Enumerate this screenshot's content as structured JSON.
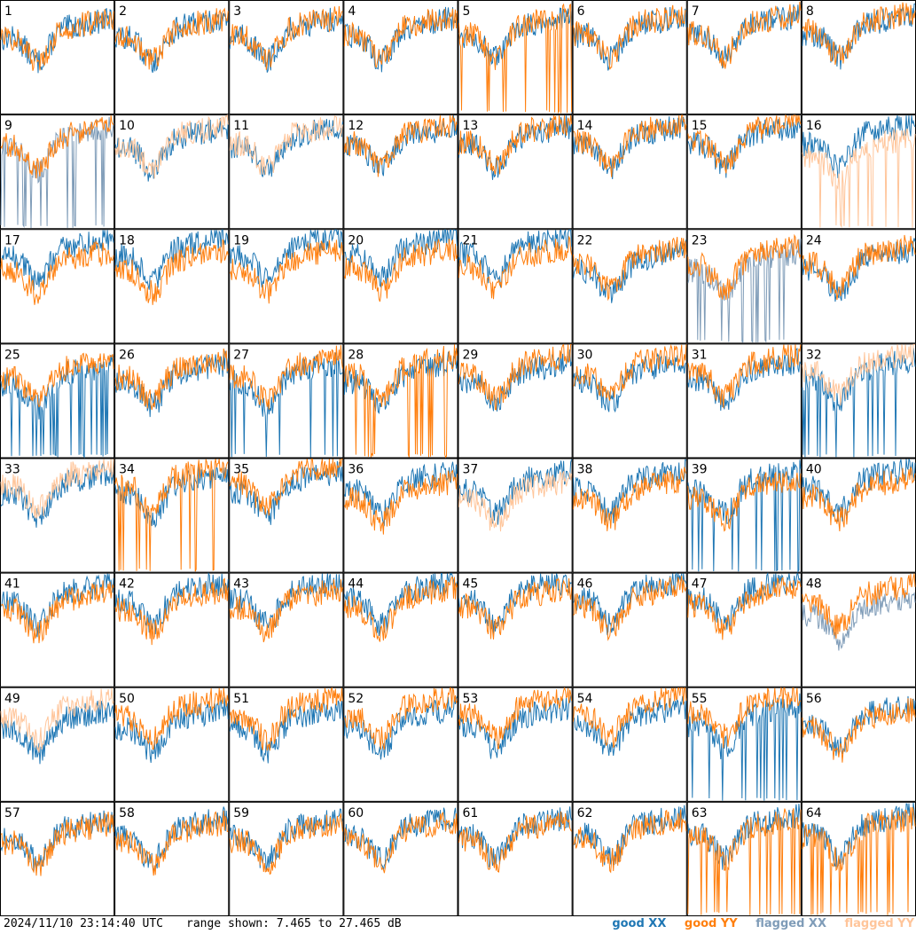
{
  "chart_data": {
    "type": "line",
    "grid": {
      "rows": 8,
      "cols": 8
    },
    "panels": [
      "1",
      "2",
      "3",
      "4",
      "5",
      "6",
      "7",
      "8",
      "9",
      "10",
      "11",
      "12",
      "13",
      "14",
      "15",
      "16",
      "17",
      "18",
      "19",
      "20",
      "21",
      "22",
      "23",
      "24",
      "25",
      "26",
      "27",
      "28",
      "29",
      "30",
      "31",
      "32",
      "33",
      "34",
      "35",
      "36",
      "37",
      "38",
      "39",
      "40",
      "41",
      "42",
      "43",
      "44",
      "45",
      "46",
      "47",
      "48",
      "49",
      "50",
      "51",
      "52",
      "53",
      "54",
      "55",
      "56",
      "57",
      "58",
      "59",
      "60",
      "61",
      "62",
      "63",
      "64"
    ],
    "flagged_xx": [
      "9",
      "23",
      "48"
    ],
    "flagged_yy": [
      "10",
      "11",
      "16",
      "32",
      "33",
      "37",
      "49"
    ],
    "spike_xx": [
      "9",
      "23",
      "25",
      "27",
      "32",
      "39",
      "55"
    ],
    "spike_yy": [
      "5",
      "16",
      "28",
      "34",
      "63",
      "64"
    ],
    "ylim": [
      7.465,
      27.465
    ],
    "series": [
      {
        "name": "good XX",
        "color": "#1f77b4"
      },
      {
        "name": "good YY",
        "color": "#ff7f0e"
      },
      {
        "name": "flagged XX",
        "color": "#7f9cb8"
      },
      {
        "name": "flagged YY",
        "color": "#ffc59a"
      }
    ]
  },
  "footer": {
    "timestamp": "2024/11/10 23:14:40 UTC",
    "range": "range shown: 7.465 to 27.465 dB"
  },
  "legend": {
    "good_xx": "good XX",
    "good_yy": "good YY",
    "flagged_xx": "flagged XX",
    "flagged_yy": "flagged YY"
  }
}
